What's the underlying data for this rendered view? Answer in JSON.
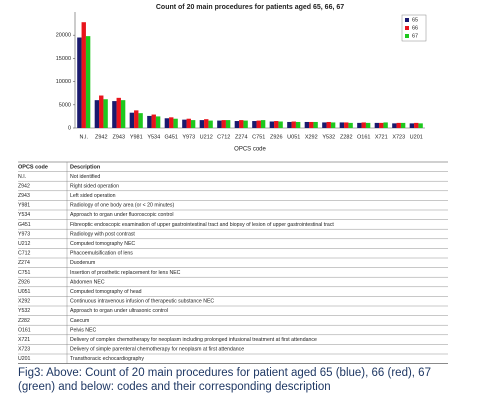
{
  "chart_data": {
    "type": "bar",
    "title": "Count of 20 main procedures for patients aged 65, 66, 67",
    "x_label": "OPCS code",
    "categories": [
      "N.I.",
      "Z942",
      "Z943",
      "Y981",
      "Y534",
      "G451",
      "Y973",
      "U212",
      "C712",
      "Z274",
      "C751",
      "Z926",
      "U051",
      "X292",
      "Y532",
      "Z282",
      "O161",
      "X721",
      "X723",
      "U201"
    ],
    "series": [
      {
        "name": "65",
        "color": "#1a1a6e",
        "values": [
          19500,
          6000,
          5800,
          3300,
          2600,
          2100,
          1800,
          1700,
          1600,
          1500,
          1500,
          1400,
          1300,
          1300,
          1200,
          1200,
          1100,
          1100,
          1000,
          1000
        ]
      },
      {
        "name": "66",
        "color": "#e8141c",
        "values": [
          22800,
          7000,
          6500,
          3800,
          2900,
          2300,
          2000,
          1900,
          1700,
          1700,
          1600,
          1500,
          1400,
          1300,
          1300,
          1200,
          1200,
          1100,
          1100,
          1100
        ]
      },
      {
        "name": "67",
        "color": "#1ec81e",
        "values": [
          19800,
          6200,
          6000,
          3200,
          2500,
          2000,
          1700,
          1600,
          1700,
          1600,
          1700,
          1400,
          1300,
          1300,
          1200,
          1100,
          1100,
          1200,
          1100,
          1000
        ]
      }
    ],
    "ylim": [
      0,
      25000
    ],
    "yticks": [
      0,
      5000,
      10000,
      15000,
      20000
    ],
    "grid": false,
    "legend": "top-right"
  },
  "table": {
    "header": [
      "OPCS code",
      "Description"
    ],
    "rows": [
      [
        "N.I.",
        "Not identified"
      ],
      [
        "Z942",
        "Right sided operation"
      ],
      [
        "Z943",
        "Left sided operation"
      ],
      [
        "Y981",
        "Radiology of one body area (or < 20 minutes)"
      ],
      [
        "Y534",
        "Approach to organ under fluoroscopic control"
      ],
      [
        "G451",
        "Fibreoptic endoscopic examination of upper gastrointestinal tract and biopsy of lesion of upper gastrointestinal tract"
      ],
      [
        "Y973",
        "Radiology with post contrast"
      ],
      [
        "U212",
        "Computed tomography NEC"
      ],
      [
        "C712",
        "Phacoemulsification of lens"
      ],
      [
        "Z274",
        "Duodenum"
      ],
      [
        "C751",
        "Insertion of prosthetic replacement for lens NEC"
      ],
      [
        "Z926",
        "Abdomen NEC"
      ],
      [
        "U051",
        "Computed tomography of head"
      ],
      [
        "X292",
        "Continuous intravenous infusion of therapeutic substance NEC"
      ],
      [
        "Y532",
        "Approach to organ under ultrasonic control"
      ],
      [
        "Z282",
        "Caecum"
      ],
      [
        "O161",
        "Pelvis NEC"
      ],
      [
        "X721",
        "Delivery of complex chemotherapy for neoplasm including prolonged infusional treatment at first attendance"
      ],
      [
        "X723",
        "Delivery of simple parenteral chemotherapy for neoplasm at first attendance"
      ],
      [
        "U201",
        "Transthoracic echocardiography"
      ]
    ]
  },
  "caption": "Fig3: Above: Count of 20 main procedures for patient aged 65 (blue), 66 (red), 67 (green) and below: codes and their corresponding description"
}
